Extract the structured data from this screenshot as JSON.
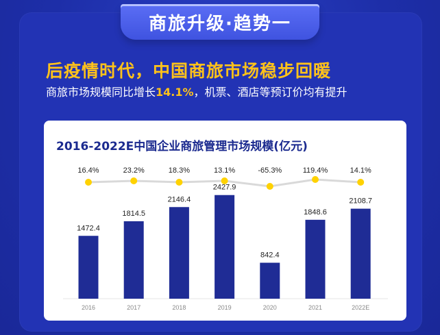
{
  "header": {
    "tab_title": "商旅升级·趋势一"
  },
  "headline": "后疫情时代，中国商旅市场稳步回暖",
  "subline": {
    "before": "商旅市场规模同比增长",
    "highlight": "14.1%",
    "after": "，机票、酒店等预订价均有提升"
  },
  "colors": {
    "background": "#1d2ea8",
    "accent": "#ffc21a",
    "bar": "#1f2c95",
    "line": "#d9d9d9",
    "marker": "#ffd200"
  },
  "chart_data": {
    "type": "bar",
    "title": "2016-2022E中国企业商旅管理市场规模(亿元)",
    "categories": [
      "2016",
      "2017",
      "2018",
      "2019",
      "2020",
      "2021",
      "2022E"
    ],
    "values": [
      1472.4,
      1814.5,
      2146.4,
      2427.9,
      842.4,
      1848.6,
      2108.7
    ],
    "value_labels": [
      "1472.4",
      "1814.5",
      "2146.4",
      "2427.9",
      "842.4",
      "1848.6",
      "2108.7"
    ],
    "growth_labels": [
      "16.4%",
      "23.2%",
      "18.3%",
      "13.1%",
      "-65.3%",
      "119.4%",
      "14.1%"
    ],
    "growth_line": "flat",
    "ylim": [
      0,
      2600
    ],
    "legend": "none",
    "grid": false
  }
}
